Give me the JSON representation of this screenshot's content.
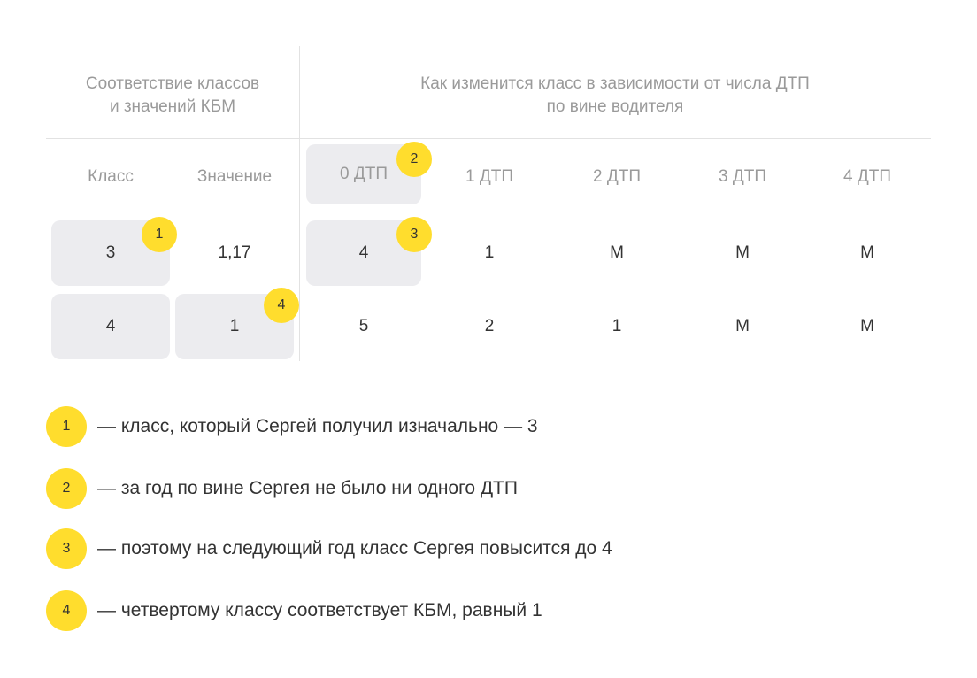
{
  "colors": {
    "badge": "#ffdd2d",
    "highlight": "#ececef",
    "text": "#333333",
    "muted": "#9a9a9a",
    "divider": "#e2e2e2"
  },
  "headers": {
    "left": [
      "Соответствие классов",
      "и значений КБМ"
    ],
    "right": [
      "Как изменится класс в зависимости от числа ДТП",
      "по вине водителя"
    ]
  },
  "columns": {
    "class": "Класс",
    "value": "Значение",
    "dtp": [
      "0 ДТП",
      "1 ДТП",
      "2 ДТП",
      "3 ДТП",
      "4 ДТП"
    ]
  },
  "rows": [
    {
      "class": "3",
      "value": "1,17",
      "dtp": [
        "4",
        "1",
        "М",
        "М",
        "М"
      ]
    },
    {
      "class": "4",
      "value": "1",
      "dtp": [
        "5",
        "2",
        "1",
        "М",
        "М"
      ]
    }
  ],
  "badges": [
    "1",
    "2",
    "3",
    "4"
  ],
  "legend": [
    {
      "num": "1",
      "text": "— класс, который Сергей получил изначально — 3"
    },
    {
      "num": "2",
      "text": "— за год по вине Сергея не было ни одного ДТП"
    },
    {
      "num": "3",
      "text": "— поэтому на следующий год класс Сергея повысится до 4"
    },
    {
      "num": "4",
      "text": "— четвертому классу соответствует КБМ, равный 1"
    }
  ]
}
